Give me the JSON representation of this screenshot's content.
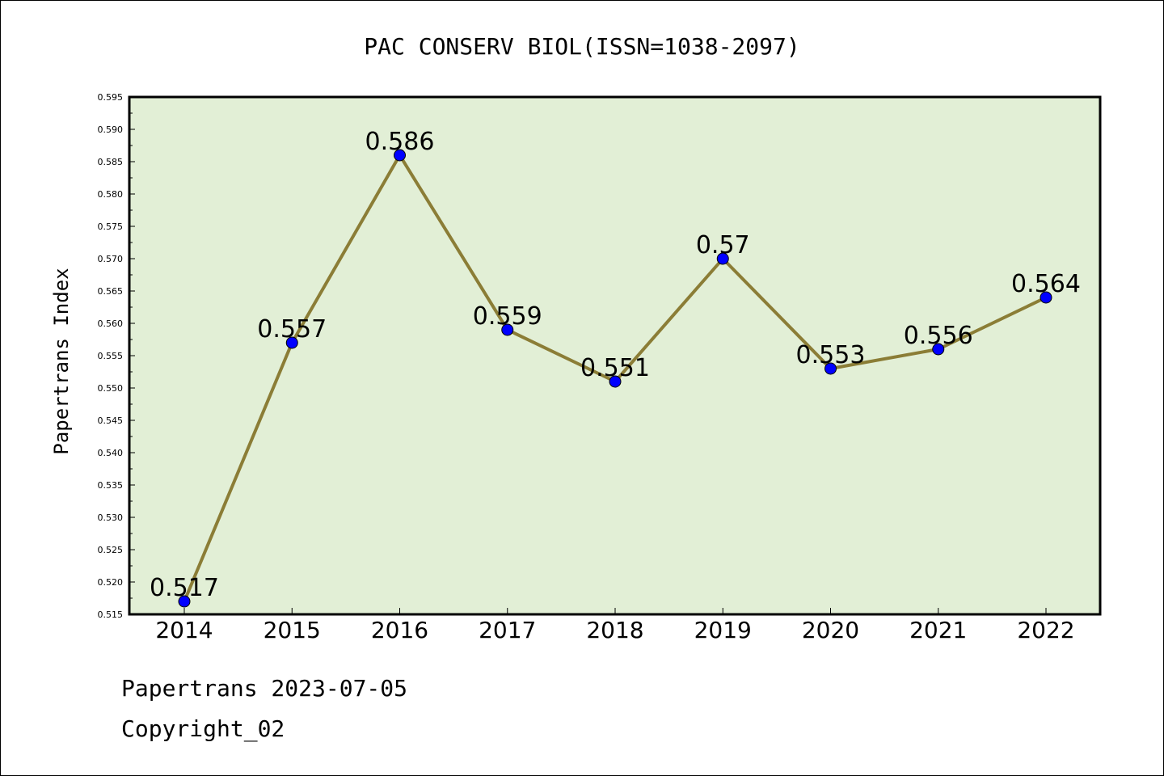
{
  "chart_data": {
    "type": "line",
    "title": "PAC CONSERV BIOL(ISSN=1038-2097)",
    "xlabel": "",
    "ylabel": "Papertrans Index",
    "categories": [
      "2014",
      "2015",
      "2016",
      "2017",
      "2018",
      "2019",
      "2020",
      "2021",
      "2022"
    ],
    "values": [
      0.517,
      0.557,
      0.586,
      0.559,
      0.551,
      0.57,
      0.553,
      0.556,
      0.564
    ],
    "data_labels": [
      "0.517",
      "0.557",
      "0.586",
      "0.559",
      "0.551",
      "0.57",
      "0.553",
      "0.556",
      "0.564"
    ],
    "ylim": [
      0.515,
      0.595
    ],
    "yticks": [
      "0.515",
      "0.520",
      "0.525",
      "0.530",
      "0.535",
      "0.540",
      "0.545",
      "0.550",
      "0.555",
      "0.560",
      "0.565",
      "0.570",
      "0.575",
      "0.580",
      "0.585",
      "0.590",
      "0.595"
    ],
    "grid": false,
    "legend": "none",
    "colors": {
      "plot_background": "#e2efd6",
      "line": "#8b7d36",
      "marker": "#0000ff"
    }
  },
  "footer": {
    "line1": "Papertrans 2023-07-05",
    "line2": "Copyright_02"
  }
}
